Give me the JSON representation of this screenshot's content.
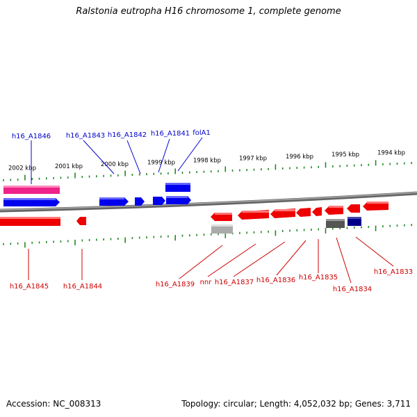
{
  "title": "Ralstonia eutropha H16 chromosome 1, complete genome",
  "footer": {
    "accession_label": "Accession:",
    "accession": "NC_008313",
    "topology_label": "Topology:",
    "topology": "circular",
    "length_label": "Length:",
    "length": "4,052,032 bp",
    "genes_label": "Genes:",
    "genes": "3,711"
  },
  "scale": {
    "tick_labels": [
      "2002 kbp",
      "2001 kbp",
      "2000 kbp",
      "1999 kbp",
      "1998 kbp",
      "1997 kbp",
      "1996 kbp",
      "1995 kbp",
      "1994 kbp"
    ]
  },
  "colors": {
    "forward_gene": "#0000ee",
    "reverse_gene": "#ee0000",
    "forward_label": "#0000cc",
    "reverse_label": "#cc0000",
    "pseudogene_forward": "#ee2288",
    "pseudogene_reverse": "#aaaaaa",
    "rna_gene": "#000088",
    "misc_feature": "#555555",
    "tick": "#228822",
    "backbone": "#777777"
  },
  "forward_labels": [
    {
      "key": "a1846",
      "text": "h16_A1846"
    },
    {
      "key": "a1843",
      "text": "h16_A1843"
    },
    {
      "key": "a1842",
      "text": "h16_A1842"
    },
    {
      "key": "a1841",
      "text": "h16_A1841"
    },
    {
      "key": "fola1",
      "text": "folA1"
    }
  ],
  "reverse_labels": [
    {
      "key": "a1845",
      "text": "h16_A1845"
    },
    {
      "key": "a1844",
      "text": "h16_A1844"
    },
    {
      "key": "a1839",
      "text": "h16_A1839"
    },
    {
      "key": "nnr",
      "text": "nnr"
    },
    {
      "key": "a1837",
      "text": "h16_A1837"
    },
    {
      "key": "a1836",
      "text": "h16_A1836"
    },
    {
      "key": "a1835",
      "text": "h16_A1835"
    },
    {
      "key": "a1834",
      "text": "h16_A1834"
    },
    {
      "key": "a1833",
      "text": "h16_A1833"
    }
  ]
}
